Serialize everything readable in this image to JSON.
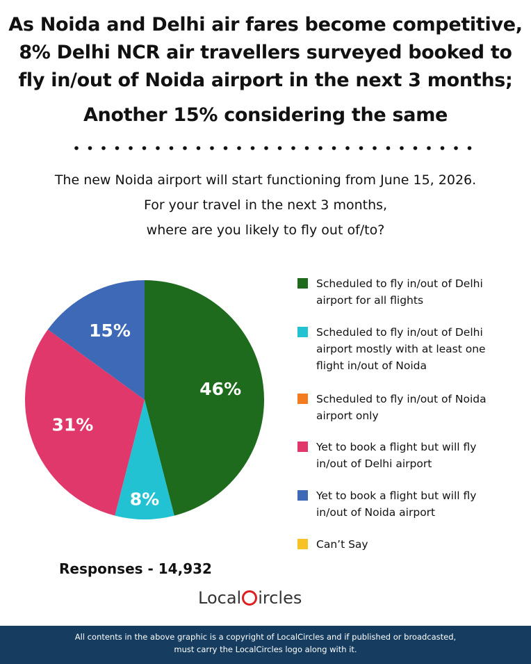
{
  "chart_data": {
    "type": "pie",
    "title": [
      "As Noida and Delhi air fares become competitive,",
      "8% Delhi NCR air travellers surveyed booked to",
      "fly in/out of Noida airport in the next 3 months;",
      "Another 15% considering the same"
    ],
    "subtitle": [
      "The new Noida airport will start functioning from June 15, 2026.",
      "For your travel in the next 3 months,",
      "where are you likely to fly out of/to?"
    ],
    "categories": [
      "Scheduled to fly in/out of Delhi airport for all flights",
      "Scheduled to fly in/out of Delhi airport mostly with at least one flight in/out of Noida",
      "Scheduled to fly in/out of Noida airport only",
      "Yet to book a flight but will fly in/out of Delhi airport",
      "Yet to book a flight but will fly in/out of Noida airport",
      "Can’t Say"
    ],
    "values": [
      46,
      8,
      0,
      31,
      15,
      0
    ],
    "value_labels": [
      "46%",
      "8%",
      null,
      "31%",
      "15%",
      null
    ],
    "colors": [
      "#1e6b1e",
      "#22c2d2",
      "#f47c20",
      "#e0386a",
      "#3d69b6",
      "#f6c226"
    ],
    "legend": "right",
    "responses": "Responses - 14,932"
  },
  "logo": {
    "left": "Local",
    "right": "ircles"
  },
  "footer": [
    "All contents in the above graphic is a copyright of LocalCircles and if published or broadcasted,",
    "must carry the LocalCircles logo along with it."
  ]
}
